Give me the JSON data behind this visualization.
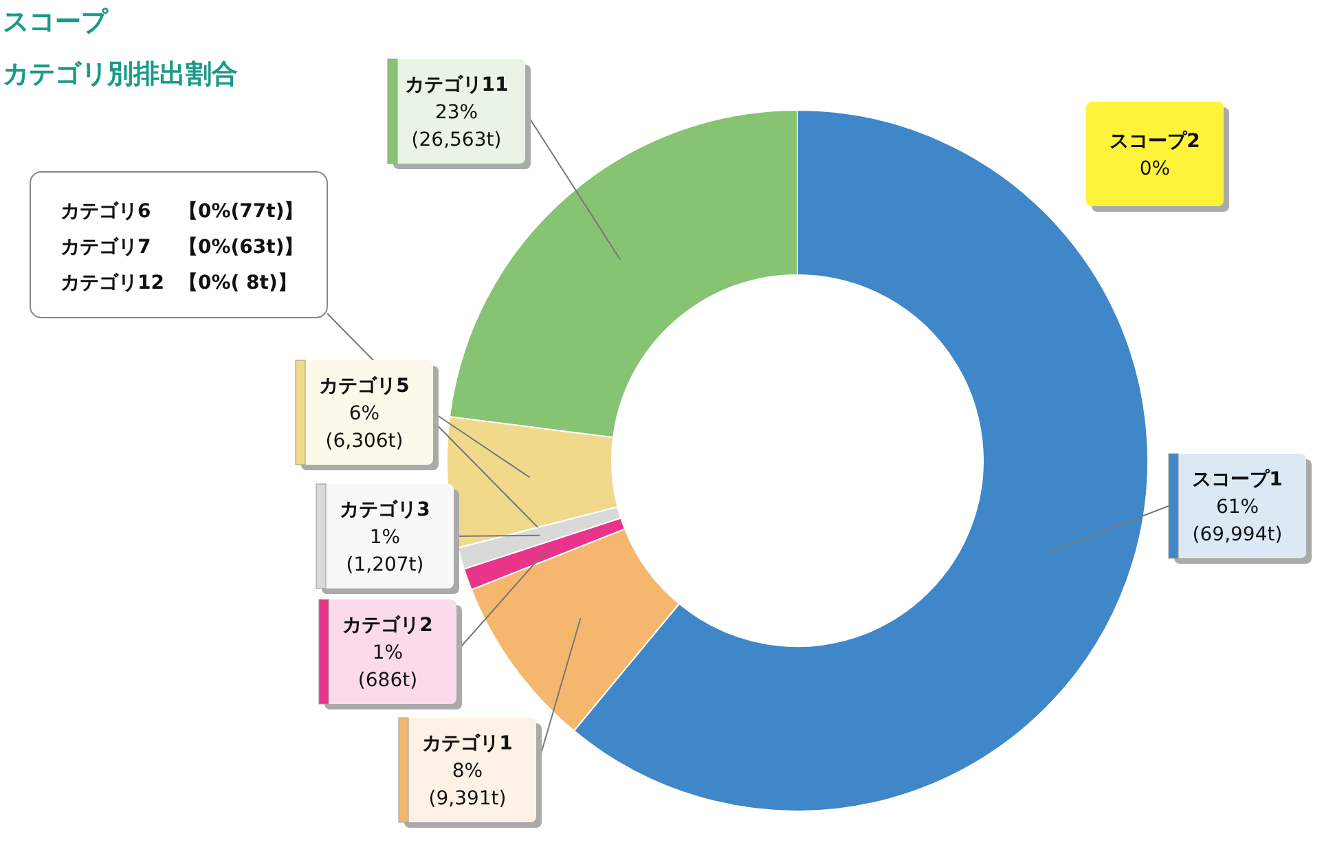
{
  "chart_data": {
    "type": "donut",
    "title": "スコープ",
    "subtitle": "カテゴリ別排出割合",
    "categories": [
      "スコープ1",
      "スコープ2",
      "カテゴリ1",
      "カテゴリ2",
      "カテゴリ3",
      "カテゴリ6",
      "カテゴリ7",
      "カテゴリ12",
      "カテゴリ5",
      "カテゴリ11"
    ],
    "values": [
      61,
      0,
      8,
      1,
      1,
      0,
      0,
      0,
      6,
      23
    ],
    "colors": [
      "#3f87c9",
      "#fff23a",
      "#f5b76d",
      "#e8358a",
      "#d9d9d9",
      "#8a8a8a",
      "#6a1a3a",
      "#b0b0b0",
      "#f0d98a",
      "#86c473"
    ],
    "value_labels": [
      "61%\n(69,994t)",
      "0%",
      "8%\n(9,391t)",
      "1%\n(686t)",
      "1%\n(1,207t)",
      "【0%(77t)】",
      "【0%(63t)】",
      "【0%(  8t)】",
      "6%\n(6,306t)",
      "23%\n(26,563t)"
    ],
    "legend": false
  }
}
